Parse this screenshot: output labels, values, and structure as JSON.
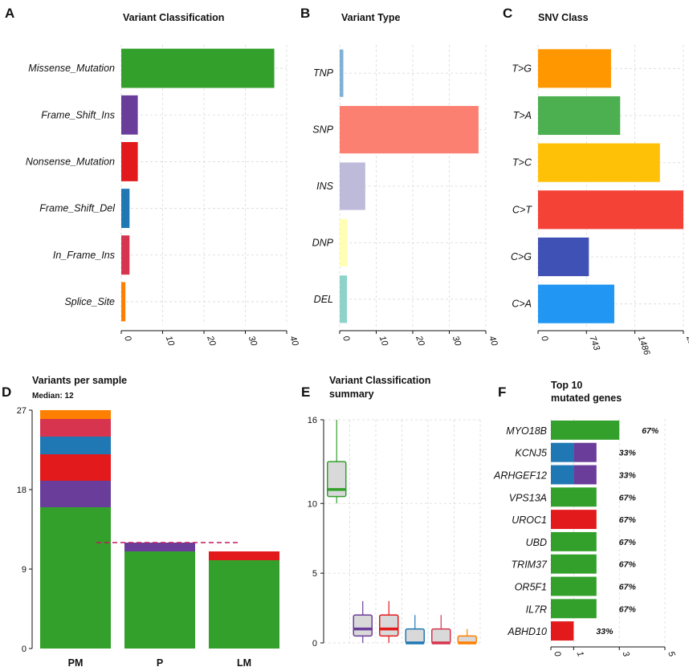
{
  "colors": {
    "Missense_Mutation": "#33a02c",
    "Frame_Shift_Ins": "#6a3d9a",
    "Nonsense_Mutation": "#e31a1c",
    "Frame_Shift_Del": "#1f78b4",
    "In_Frame_Ins": "#d6344f",
    "Splice_Site": "#ff7f00",
    "box_fill": "#d9d9d9",
    "median_line": "#c2185b"
  },
  "chart_data": [
    {
      "id": "A",
      "panel_label": "A",
      "type": "bar",
      "orientation": "horizontal",
      "title": "Variant Classification",
      "categories": [
        "Missense_Mutation",
        "Frame_Shift_Ins",
        "Nonsense_Mutation",
        "Frame_Shift_Del",
        "In_Frame_Ins",
        "Splice_Site"
      ],
      "values": [
        37,
        4,
        4,
        2,
        2,
        1
      ],
      "colors": [
        "#33a02c",
        "#6a3d9a",
        "#e31a1c",
        "#1f78b4",
        "#d6344f",
        "#ff7f00"
      ],
      "xlim": [
        0,
        40
      ],
      "xticks": [
        0,
        10,
        20,
        30,
        40
      ]
    },
    {
      "id": "B",
      "panel_label": "B",
      "type": "bar",
      "orientation": "horizontal",
      "title": "Variant Type",
      "categories": [
        "TNP",
        "SNP",
        "INS",
        "DNP",
        "DEL"
      ],
      "values": [
        1,
        38,
        7,
        2,
        2
      ],
      "colors": [
        "#80b1d3",
        "#fb8072",
        "#bebada",
        "#ffffb3",
        "#8dd3c7"
      ],
      "xlim": [
        0,
        40
      ],
      "xticks": [
        0,
        10,
        20,
        30,
        40
      ]
    },
    {
      "id": "C",
      "panel_label": "C",
      "type": "bar",
      "orientation": "horizontal",
      "title": "SNV Class",
      "categories": [
        "T>G",
        "T>A",
        "T>C",
        "C>T",
        "C>G",
        "C>A"
      ],
      "values": [
        1120,
        1260,
        1870,
        2230,
        780,
        1170
      ],
      "colors": [
        "#ff9800",
        "#4caf50",
        "#ffc107",
        "#f44336",
        "#3f51b5",
        "#2196f3"
      ],
      "xlim": [
        0,
        2230
      ],
      "xticks": [
        0,
        743,
        1486,
        2230
      ]
    },
    {
      "id": "D",
      "panel_label": "D",
      "type": "bar",
      "stacked": true,
      "title": "Variants per sample",
      "subtitle": "Median: 12",
      "median": 12,
      "categories": [
        "PM",
        "P",
        "LM"
      ],
      "series": [
        {
          "name": "Missense_Mutation",
          "values": [
            16,
            11,
            10
          ]
        },
        {
          "name": "Frame_Shift_Ins",
          "values": [
            3,
            1,
            0
          ]
        },
        {
          "name": "Nonsense_Mutation",
          "values": [
            3,
            0,
            1
          ]
        },
        {
          "name": "Frame_Shift_Del",
          "values": [
            2,
            0,
            0
          ]
        },
        {
          "name": "In_Frame_Ins",
          "values": [
            2,
            0,
            0
          ]
        },
        {
          "name": "Splice_Site",
          "values": [
            1,
            0,
            0
          ]
        }
      ],
      "ylim": [
        0,
        27
      ],
      "yticks": [
        0,
        9,
        18,
        27
      ]
    },
    {
      "id": "E",
      "panel_label": "E",
      "type": "boxplot",
      "title_lines": [
        "Variant Classification",
        "summary"
      ],
      "boxes": [
        {
          "name": "Missense_Mutation",
          "min": 10,
          "q1": 10.5,
          "median": 11,
          "q3": 13,
          "max": 16
        },
        {
          "name": "Frame_Shift_Ins",
          "min": 0,
          "q1": 0.5,
          "median": 1,
          "q3": 2,
          "max": 3
        },
        {
          "name": "Nonsense_Mutation",
          "min": 0,
          "q1": 0.5,
          "median": 1,
          "q3": 2,
          "max": 3
        },
        {
          "name": "Frame_Shift_Del",
          "min": 0,
          "q1": 0,
          "median": 0,
          "q3": 1,
          "max": 2
        },
        {
          "name": "In_Frame_Ins",
          "min": 0,
          "q1": 0,
          "median": 0,
          "q3": 1,
          "max": 2
        },
        {
          "name": "Splice_Site",
          "min": 0,
          "q1": 0,
          "median": 0,
          "q3": 0.5,
          "max": 1
        }
      ],
      "ylim": [
        0,
        16
      ],
      "yticks": [
        0,
        5,
        10,
        16
      ]
    },
    {
      "id": "F",
      "panel_label": "F",
      "type": "bar",
      "orientation": "horizontal",
      "stacked": true,
      "title_lines": [
        "Top 10",
        "mutated genes"
      ],
      "genes": [
        {
          "gene": "MYO18B",
          "pct": "67%",
          "segments": [
            {
              "cls": "Missense_Mutation",
              "value": 3
            }
          ]
        },
        {
          "gene": "KCNJ5",
          "pct": "33%",
          "segments": [
            {
              "cls": "Frame_Shift_Del",
              "value": 1
            },
            {
              "cls": "Frame_Shift_Ins",
              "value": 1
            }
          ]
        },
        {
          "gene": "ARHGEF12",
          "pct": "33%",
          "segments": [
            {
              "cls": "Frame_Shift_Del",
              "value": 1
            },
            {
              "cls": "Frame_Shift_Ins",
              "value": 1
            }
          ]
        },
        {
          "gene": "VPS13A",
          "pct": "67%",
          "segments": [
            {
              "cls": "Missense_Mutation",
              "value": 2
            }
          ]
        },
        {
          "gene": "UROC1",
          "pct": "67%",
          "segments": [
            {
              "cls": "Nonsense_Mutation",
              "value": 2
            }
          ]
        },
        {
          "gene": "UBD",
          "pct": "67%",
          "segments": [
            {
              "cls": "Missense_Mutation",
              "value": 2
            }
          ]
        },
        {
          "gene": "TRIM37",
          "pct": "67%",
          "segments": [
            {
              "cls": "Missense_Mutation",
              "value": 2
            }
          ]
        },
        {
          "gene": "OR5F1",
          "pct": "67%",
          "segments": [
            {
              "cls": "Missense_Mutation",
              "value": 2
            }
          ]
        },
        {
          "gene": "IL7R",
          "pct": "67%",
          "segments": [
            {
              "cls": "Missense_Mutation",
              "value": 2
            }
          ]
        },
        {
          "gene": "ABHD10",
          "pct": "33%",
          "segments": [
            {
              "cls": "Nonsense_Mutation",
              "value": 1
            }
          ]
        }
      ],
      "xlim": [
        0,
        5
      ],
      "xticks": [
        0,
        1,
        3,
        5
      ]
    }
  ]
}
